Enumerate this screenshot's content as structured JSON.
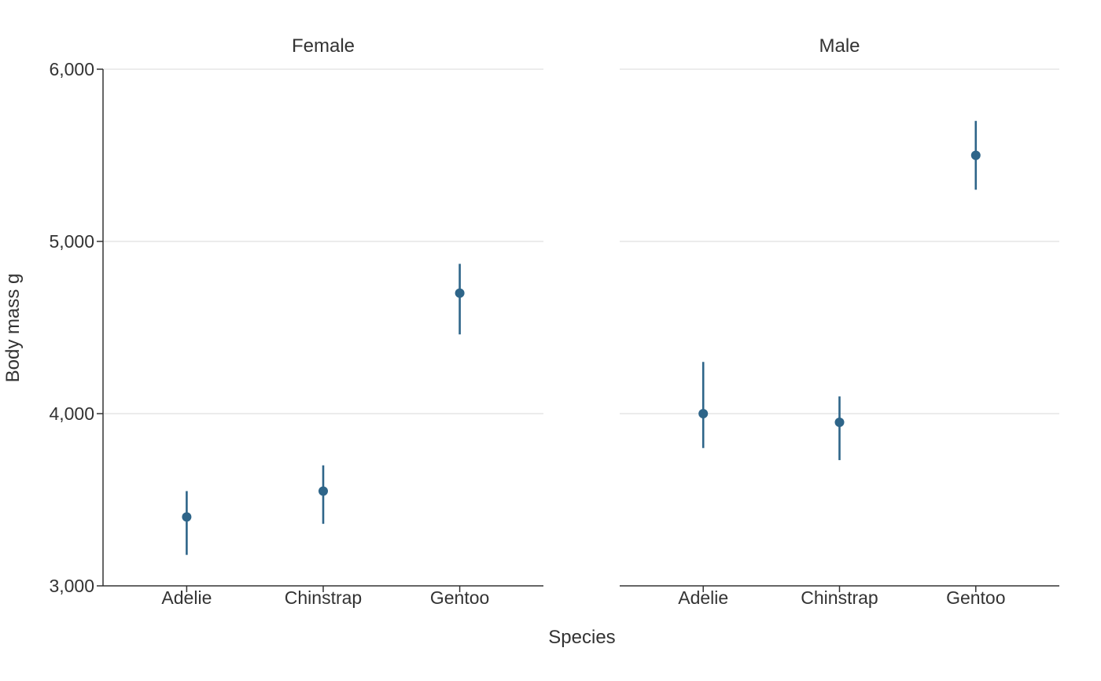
{
  "colors": {
    "point": "#2e6589",
    "axis": "#333333",
    "grid": "#d9d9d9"
  },
  "chart_data": {
    "type": "scatter",
    "subtype": "pointrange",
    "xlabel": "Species",
    "ylabel": "Body mass g",
    "ylim": [
      3000,
      6000
    ],
    "y_ticks": [
      3000,
      4000,
      5000,
      6000
    ],
    "y_tick_labels": [
      "3,000",
      "4,000",
      "5,000",
      "6,000"
    ],
    "categories": [
      "Adelie",
      "Chinstrap",
      "Gentoo"
    ],
    "grid": "horizontal",
    "facets": [
      {
        "title": "Female",
        "points": [
          {
            "x": "Adelie",
            "y": 3400,
            "ymin": 3180,
            "ymax": 3550
          },
          {
            "x": "Chinstrap",
            "y": 3550,
            "ymin": 3360,
            "ymax": 3700
          },
          {
            "x": "Gentoo",
            "y": 4700,
            "ymin": 4460,
            "ymax": 4870
          }
        ]
      },
      {
        "title": "Male",
        "points": [
          {
            "x": "Adelie",
            "y": 4000,
            "ymin": 3800,
            "ymax": 4300
          },
          {
            "x": "Chinstrap",
            "y": 3950,
            "ymin": 3730,
            "ymax": 4100
          },
          {
            "x": "Gentoo",
            "y": 5500,
            "ymin": 5300,
            "ymax": 5700
          }
        ]
      }
    ]
  }
}
